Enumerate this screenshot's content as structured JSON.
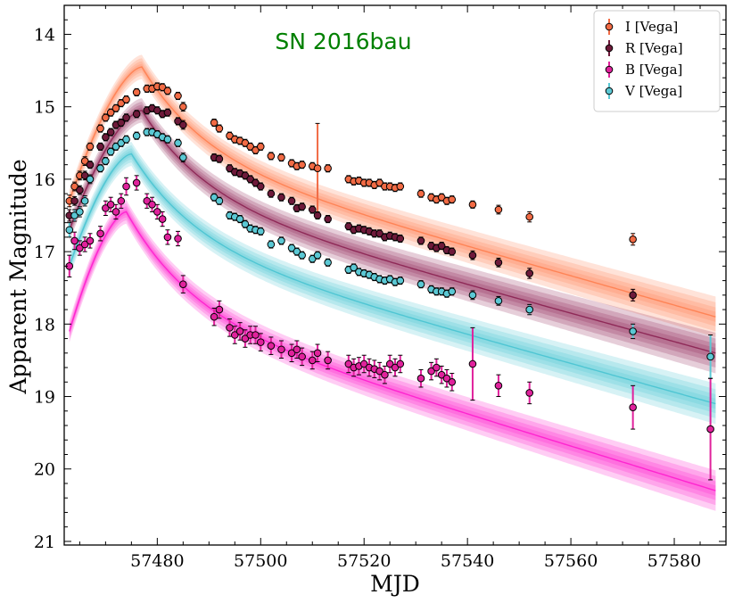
{
  "chart_data": {
    "type": "scatter",
    "title": "SN 2016bau",
    "title_color": "#008000",
    "xlabel": "MJD",
    "ylabel": "Apparent Magnitude",
    "xlim": [
      57462,
      57590
    ],
    "ylim": [
      21.05,
      13.6
    ],
    "y_inverted": true,
    "x_ticks": [
      57480,
      57500,
      57520,
      57540,
      57560,
      57580
    ],
    "y_ticks": [
      14,
      15,
      16,
      17,
      18,
      19,
      20,
      21
    ],
    "legend_position": "top-right",
    "series": [
      {
        "name": "I [Vega]",
        "color": "#f26b45",
        "band_color": "#ff7f50",
        "model_peak_mjd": 57477,
        "model_peak_mag": 14.45,
        "model_rise_mag": 16.3,
        "model_end_mag": 17.9,
        "points": [
          [
            57463,
            16.3,
            0.08
          ],
          [
            57464,
            16.1,
            0.06
          ],
          [
            57465,
            15.95,
            0.06
          ],
          [
            57466,
            15.75,
            0.06
          ],
          [
            57467,
            15.55,
            0.05
          ],
          [
            57469,
            15.3,
            0.05
          ],
          [
            57470,
            15.15,
            0.05
          ],
          [
            57471,
            15.08,
            0.05
          ],
          [
            57472,
            15.02,
            0.05
          ],
          [
            57473,
            14.95,
            0.05
          ],
          [
            57474,
            14.9,
            0.05
          ],
          [
            57476,
            14.8,
            0.05
          ],
          [
            57478,
            14.75,
            0.05
          ],
          [
            57479,
            14.75,
            0.05
          ],
          [
            57480,
            14.72,
            0.05
          ],
          [
            57481,
            14.73,
            0.05
          ],
          [
            57482,
            14.78,
            0.05
          ],
          [
            57484,
            14.85,
            0.05
          ],
          [
            57485,
            15.0,
            0.06
          ],
          [
            57491,
            15.22,
            0.05
          ],
          [
            57492,
            15.3,
            0.05
          ],
          [
            57494,
            15.4,
            0.05
          ],
          [
            57495,
            15.45,
            0.05
          ],
          [
            57496,
            15.47,
            0.05
          ],
          [
            57497,
            15.5,
            0.05
          ],
          [
            57498,
            15.55,
            0.05
          ],
          [
            57499,
            15.6,
            0.05
          ],
          [
            57500,
            15.55,
            0.05
          ],
          [
            57502,
            15.68,
            0.05
          ],
          [
            57504,
            15.7,
            0.05
          ],
          [
            57506,
            15.78,
            0.05
          ],
          [
            57507,
            15.82,
            0.05
          ],
          [
            57508,
            15.8,
            0.05
          ],
          [
            57510,
            15.82,
            0.05
          ],
          [
            57511,
            15.85,
            0.62
          ],
          [
            57513,
            15.85,
            0.05
          ],
          [
            57517,
            16.0,
            0.05
          ],
          [
            57518,
            16.03,
            0.05
          ],
          [
            57519,
            16.02,
            0.05
          ],
          [
            57520,
            16.05,
            0.05
          ],
          [
            57521,
            16.05,
            0.05
          ],
          [
            57522,
            16.08,
            0.05
          ],
          [
            57523,
            16.05,
            0.05
          ],
          [
            57524,
            16.1,
            0.05
          ],
          [
            57525,
            16.1,
            0.05
          ],
          [
            57526,
            16.12,
            0.05
          ],
          [
            57527,
            16.1,
            0.05
          ],
          [
            57531,
            16.2,
            0.05
          ],
          [
            57533,
            16.25,
            0.05
          ],
          [
            57534,
            16.28,
            0.05
          ],
          [
            57535,
            16.25,
            0.05
          ],
          [
            57536,
            16.3,
            0.05
          ],
          [
            57537,
            16.28,
            0.05
          ],
          [
            57541,
            16.35,
            0.05
          ],
          [
            57546,
            16.42,
            0.06
          ],
          [
            57552,
            16.52,
            0.07
          ],
          [
            57572,
            16.83,
            0.08
          ]
        ]
      },
      {
        "name": "R [Vega]",
        "color": "#6e1a3a",
        "band_color": "#8b2252",
        "model_peak_mjd": 57477,
        "model_peak_mag": 15.05,
        "model_rise_mag": 16.7,
        "model_end_mag": 18.4,
        "points": [
          [
            57463,
            16.5,
            0.08
          ],
          [
            57464,
            16.3,
            0.06
          ],
          [
            57465,
            16.15,
            0.06
          ],
          [
            57466,
            15.95,
            0.06
          ],
          [
            57467,
            15.8,
            0.05
          ],
          [
            57469,
            15.55,
            0.05
          ],
          [
            57470,
            15.42,
            0.05
          ],
          [
            57471,
            15.35,
            0.05
          ],
          [
            57472,
            15.25,
            0.05
          ],
          [
            57473,
            15.22,
            0.05
          ],
          [
            57474,
            15.15,
            0.05
          ],
          [
            57476,
            15.1,
            0.05
          ],
          [
            57478,
            15.05,
            0.05
          ],
          [
            57479,
            15.02,
            0.05
          ],
          [
            57480,
            15.05,
            0.05
          ],
          [
            57481,
            15.1,
            0.05
          ],
          [
            57482,
            15.08,
            0.05
          ],
          [
            57484,
            15.2,
            0.05
          ],
          [
            57485,
            15.25,
            0.06
          ],
          [
            57491,
            15.7,
            0.05
          ],
          [
            57492,
            15.72,
            0.05
          ],
          [
            57494,
            15.85,
            0.05
          ],
          [
            57495,
            15.9,
            0.05
          ],
          [
            57496,
            15.92,
            0.05
          ],
          [
            57497,
            15.95,
            0.05
          ],
          [
            57498,
            16.0,
            0.05
          ],
          [
            57499,
            16.05,
            0.05
          ],
          [
            57500,
            16.1,
            0.05
          ],
          [
            57502,
            16.2,
            0.05
          ],
          [
            57504,
            16.25,
            0.05
          ],
          [
            57506,
            16.3,
            0.05
          ],
          [
            57507,
            16.4,
            0.05
          ],
          [
            57508,
            16.38,
            0.05
          ],
          [
            57510,
            16.42,
            0.05
          ],
          [
            57511,
            16.5,
            0.05
          ],
          [
            57513,
            16.55,
            0.05
          ],
          [
            57517,
            16.65,
            0.05
          ],
          [
            57518,
            16.7,
            0.05
          ],
          [
            57519,
            16.68,
            0.05
          ],
          [
            57520,
            16.7,
            0.05
          ],
          [
            57521,
            16.72,
            0.05
          ],
          [
            57522,
            16.75,
            0.05
          ],
          [
            57523,
            16.75,
            0.05
          ],
          [
            57524,
            16.8,
            0.05
          ],
          [
            57525,
            16.78,
            0.05
          ],
          [
            57526,
            16.8,
            0.05
          ],
          [
            57527,
            16.82,
            0.05
          ],
          [
            57531,
            16.85,
            0.05
          ],
          [
            57533,
            16.92,
            0.05
          ],
          [
            57534,
            16.95,
            0.05
          ],
          [
            57535,
            16.92,
            0.05
          ],
          [
            57536,
            16.98,
            0.05
          ],
          [
            57537,
            17.0,
            0.05
          ],
          [
            57541,
            17.05,
            0.06
          ],
          [
            57546,
            17.15,
            0.06
          ],
          [
            57552,
            17.3,
            0.07
          ],
          [
            57572,
            17.6,
            0.08
          ]
        ]
      },
      {
        "name": "B [Vega]",
        "color": "#e0229c",
        "band_color": "#ff1dce",
        "model_peak_mjd": 57474,
        "model_peak_mag": 16.45,
        "model_rise_mag": 18.1,
        "model_end_mag": 20.3,
        "points": [
          [
            57463,
            17.2,
            0.15
          ],
          [
            57464,
            16.85,
            0.12
          ],
          [
            57465,
            16.95,
            0.1
          ],
          [
            57466,
            16.9,
            0.1
          ],
          [
            57467,
            16.85,
            0.1
          ],
          [
            57469,
            16.75,
            0.1
          ],
          [
            57470,
            16.4,
            0.1
          ],
          [
            57471,
            16.35,
            0.1
          ],
          [
            57472,
            16.45,
            0.1
          ],
          [
            57473,
            16.3,
            0.1
          ],
          [
            57474,
            16.1,
            0.12
          ],
          [
            57476,
            16.05,
            0.1
          ],
          [
            57478,
            16.3,
            0.1
          ],
          [
            57479,
            16.35,
            0.1
          ],
          [
            57480,
            16.45,
            0.1
          ],
          [
            57481,
            16.55,
            0.1
          ],
          [
            57482,
            16.8,
            0.1
          ],
          [
            57484,
            16.82,
            0.1
          ],
          [
            57485,
            17.45,
            0.12
          ],
          [
            57491,
            17.9,
            0.12
          ],
          [
            57492,
            17.8,
            0.12
          ],
          [
            57494,
            18.05,
            0.12
          ],
          [
            57495,
            18.15,
            0.12
          ],
          [
            57496,
            18.1,
            0.12
          ],
          [
            57497,
            18.2,
            0.12
          ],
          [
            57498,
            18.15,
            0.12
          ],
          [
            57499,
            18.15,
            0.12
          ],
          [
            57500,
            18.25,
            0.12
          ],
          [
            57502,
            18.3,
            0.12
          ],
          [
            57504,
            18.35,
            0.12
          ],
          [
            57506,
            18.4,
            0.12
          ],
          [
            57507,
            18.35,
            0.12
          ],
          [
            57508,
            18.45,
            0.12
          ],
          [
            57510,
            18.5,
            0.12
          ],
          [
            57511,
            18.4,
            0.12
          ],
          [
            57513,
            18.5,
            0.12
          ],
          [
            57517,
            18.55,
            0.12
          ],
          [
            57518,
            18.6,
            0.12
          ],
          [
            57519,
            18.58,
            0.12
          ],
          [
            57520,
            18.55,
            0.12
          ],
          [
            57521,
            18.6,
            0.12
          ],
          [
            57522,
            18.62,
            0.12
          ],
          [
            57523,
            18.65,
            0.12
          ],
          [
            57524,
            18.7,
            0.12
          ],
          [
            57525,
            18.55,
            0.12
          ],
          [
            57526,
            18.6,
            0.12
          ],
          [
            57527,
            18.55,
            0.12
          ],
          [
            57531,
            18.75,
            0.12
          ],
          [
            57533,
            18.65,
            0.12
          ],
          [
            57534,
            18.6,
            0.12
          ],
          [
            57535,
            18.7,
            0.12
          ],
          [
            57536,
            18.75,
            0.12
          ],
          [
            57537,
            18.8,
            0.12
          ],
          [
            57541,
            18.55,
            0.5
          ],
          [
            57546,
            18.85,
            0.15
          ],
          [
            57552,
            18.95,
            0.15
          ],
          [
            57572,
            19.15,
            0.3
          ],
          [
            57587,
            19.45,
            0.7
          ]
        ]
      },
      {
        "name": "V [Vega]",
        "color": "#5bc8d4",
        "band_color": "#48c3d1",
        "model_peak_mjd": 57475,
        "model_peak_mag": 15.65,
        "model_rise_mag": 17.2,
        "model_end_mag": 19.1,
        "points": [
          [
            57463,
            16.7,
            0.1
          ],
          [
            57464,
            16.5,
            0.08
          ],
          [
            57465,
            16.45,
            0.07
          ],
          [
            57466,
            16.3,
            0.07
          ],
          [
            57467,
            16.0,
            0.06
          ],
          [
            57469,
            15.85,
            0.05
          ],
          [
            57470,
            15.75,
            0.05
          ],
          [
            57471,
            15.62,
            0.05
          ],
          [
            57472,
            15.55,
            0.05
          ],
          [
            57473,
            15.5,
            0.05
          ],
          [
            57474,
            15.45,
            0.05
          ],
          [
            57476,
            15.4,
            0.05
          ],
          [
            57478,
            15.35,
            0.05
          ],
          [
            57479,
            15.35,
            0.05
          ],
          [
            57480,
            15.38,
            0.05
          ],
          [
            57481,
            15.42,
            0.05
          ],
          [
            57482,
            15.45,
            0.05
          ],
          [
            57484,
            15.5,
            0.05
          ],
          [
            57485,
            15.7,
            0.06
          ],
          [
            57491,
            16.25,
            0.05
          ],
          [
            57492,
            16.3,
            0.05
          ],
          [
            57494,
            16.5,
            0.05
          ],
          [
            57495,
            16.52,
            0.05
          ],
          [
            57496,
            16.55,
            0.05
          ],
          [
            57497,
            16.62,
            0.05
          ],
          [
            57498,
            16.68,
            0.05
          ],
          [
            57499,
            16.7,
            0.05
          ],
          [
            57500,
            16.72,
            0.05
          ],
          [
            57502,
            16.9,
            0.05
          ],
          [
            57504,
            16.85,
            0.05
          ],
          [
            57506,
            16.95,
            0.05
          ],
          [
            57507,
            17.0,
            0.05
          ],
          [
            57508,
            17.05,
            0.05
          ],
          [
            57510,
            17.1,
            0.05
          ],
          [
            57511,
            17.05,
            0.05
          ],
          [
            57513,
            17.15,
            0.05
          ],
          [
            57517,
            17.25,
            0.05
          ],
          [
            57518,
            17.22,
            0.05
          ],
          [
            57519,
            17.28,
            0.05
          ],
          [
            57520,
            17.3,
            0.05
          ],
          [
            57521,
            17.32,
            0.05
          ],
          [
            57522,
            17.35,
            0.05
          ],
          [
            57523,
            17.38,
            0.05
          ],
          [
            57524,
            17.4,
            0.05
          ],
          [
            57525,
            17.38,
            0.05
          ],
          [
            57526,
            17.42,
            0.05
          ],
          [
            57527,
            17.4,
            0.05
          ],
          [
            57531,
            17.45,
            0.05
          ],
          [
            57533,
            17.52,
            0.05
          ],
          [
            57534,
            17.55,
            0.05
          ],
          [
            57535,
            17.55,
            0.05
          ],
          [
            57536,
            17.58,
            0.05
          ],
          [
            57537,
            17.55,
            0.05
          ],
          [
            57541,
            17.6,
            0.06
          ],
          [
            57546,
            17.68,
            0.06
          ],
          [
            57552,
            17.8,
            0.07
          ],
          [
            57572,
            18.1,
            0.1
          ],
          [
            57587,
            18.45,
            0.3
          ]
        ]
      }
    ]
  }
}
